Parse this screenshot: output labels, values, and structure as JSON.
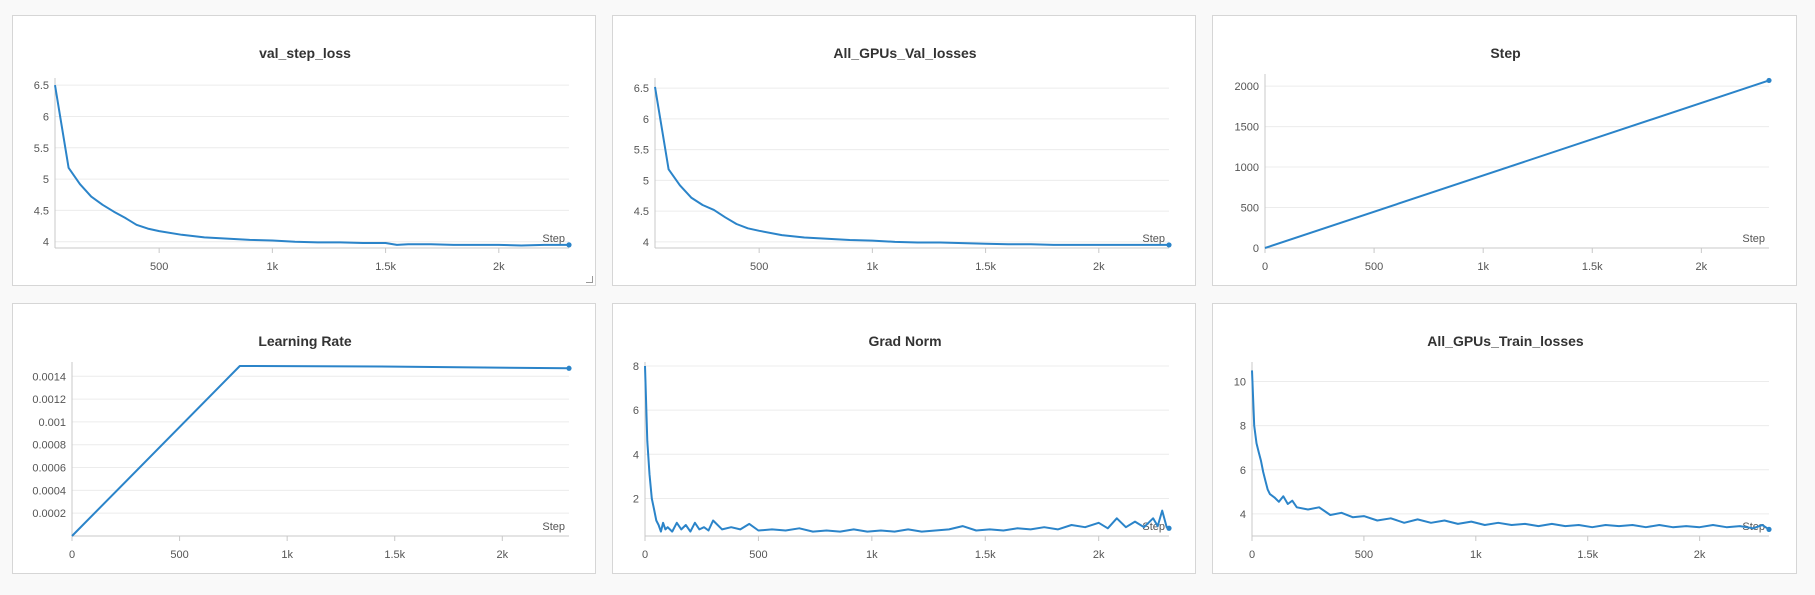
{
  "colors": {
    "line": "#2b84c9",
    "grid": "#ececec"
  },
  "chart_data": [
    {
      "type": "line",
      "title": "val_step_loss",
      "xlabel": "Step",
      "xlim": [
        40,
        2310
      ],
      "ylim": [
        3.9,
        6.55
      ],
      "xticks": [
        500,
        1000,
        1500,
        2000
      ],
      "xtick_labels": [
        "500",
        "1k",
        "1.5k",
        "2k"
      ],
      "yticks": [
        4,
        4.5,
        5,
        5.5,
        6,
        6.5
      ],
      "ytick_labels": [
        "4",
        "4.5",
        "5",
        "5.5",
        "6",
        "6.5"
      ],
      "x": [
        40,
        100,
        150,
        200,
        250,
        300,
        350,
        400,
        450,
        500,
        600,
        700,
        800,
        900,
        1000,
        1100,
        1200,
        1300,
        1400,
        1500,
        1550,
        1600,
        1700,
        1800,
        1900,
        2000,
        2100,
        2200,
        2310
      ],
      "y": [
        6.5,
        5.18,
        4.92,
        4.72,
        4.59,
        4.48,
        4.38,
        4.27,
        4.21,
        4.17,
        4.11,
        4.07,
        4.05,
        4.03,
        4.02,
        4.0,
        3.99,
        3.99,
        3.98,
        3.98,
        3.95,
        3.96,
        3.96,
        3.95,
        3.95,
        3.95,
        3.94,
        3.95,
        3.95
      ]
    },
    {
      "type": "line",
      "title": "All_GPUs_Val_losses",
      "xlabel": "Step",
      "xlim": [
        40,
        2310
      ],
      "ylim": [
        3.9,
        6.6
      ],
      "xticks": [
        500,
        1000,
        1500,
        2000
      ],
      "xtick_labels": [
        "500",
        "1k",
        "1.5k",
        "2k"
      ],
      "yticks": [
        4,
        4.5,
        5,
        5.5,
        6,
        6.5
      ],
      "ytick_labels": [
        "4",
        "4.5",
        "5",
        "5.5",
        "6",
        "6.5"
      ],
      "x": [
        40,
        100,
        150,
        200,
        250,
        300,
        350,
        400,
        450,
        500,
        600,
        700,
        800,
        900,
        1000,
        1100,
        1200,
        1300,
        1400,
        1500,
        1600,
        1700,
        1800,
        1900,
        2000,
        2100,
        2200,
        2310
      ],
      "y": [
        6.52,
        5.18,
        4.92,
        4.72,
        4.6,
        4.52,
        4.4,
        4.29,
        4.22,
        4.18,
        4.11,
        4.07,
        4.05,
        4.03,
        4.02,
        4.0,
        3.99,
        3.99,
        3.98,
        3.97,
        3.96,
        3.96,
        3.95,
        3.95,
        3.95,
        3.95,
        3.95,
        3.95
      ]
    },
    {
      "type": "line",
      "title": "Step",
      "xlabel": "Step",
      "xlim": [
        0,
        2310
      ],
      "ylim": [
        0,
        2100
      ],
      "xticks": [
        0,
        500,
        1000,
        1500,
        2000
      ],
      "xtick_labels": [
        "0",
        "500",
        "1k",
        "1.5k",
        "2k"
      ],
      "yticks": [
        0,
        500,
        1000,
        1500,
        2000
      ],
      "ytick_labels": [
        "0",
        "500",
        "1000",
        "1500",
        "2000"
      ],
      "x": [
        0,
        2310
      ],
      "y": [
        0,
        2070
      ]
    },
    {
      "type": "line",
      "title": "Learning Rate",
      "xlabel": "Step",
      "xlim": [
        0,
        2310
      ],
      "ylim": [
        0,
        0.00149
      ],
      "xticks": [
        0,
        500,
        1000,
        1500,
        2000
      ],
      "xtick_labels": [
        "0",
        "500",
        "1k",
        "1.5k",
        "2k"
      ],
      "yticks": [
        0.0002,
        0.0004,
        0.0006,
        0.0008,
        0.001,
        0.0012,
        0.0014
      ],
      "ytick_labels": [
        "0.0002",
        "0.0004",
        "0.0006",
        "0.0008",
        "0.001",
        "0.0012",
        "0.0014"
      ],
      "x": [
        0,
        780,
        1500,
        2310
      ],
      "y": [
        0,
        0.00149,
        0.001485,
        0.00147
      ]
    },
    {
      "type": "line",
      "title": "Grad Norm",
      "xlabel": "Step",
      "xlim": [
        0,
        2310
      ],
      "ylim": [
        0.3,
        8
      ],
      "xticks": [
        0,
        500,
        1000,
        1500,
        2000
      ],
      "xtick_labels": [
        "0",
        "500",
        "1k",
        "1.5k",
        "2k"
      ],
      "yticks": [
        2,
        4,
        6,
        8
      ],
      "ytick_labels": [
        "2",
        "4",
        "6",
        "8"
      ],
      "x": [
        0,
        10,
        20,
        30,
        40,
        50,
        60,
        70,
        80,
        90,
        100,
        120,
        140,
        160,
        180,
        200,
        220,
        240,
        260,
        280,
        300,
        340,
        380,
        420,
        460,
        500,
        560,
        620,
        680,
        740,
        800,
        860,
        920,
        980,
        1040,
        1100,
        1160,
        1220,
        1280,
        1340,
        1400,
        1460,
        1520,
        1580,
        1640,
        1700,
        1760,
        1820,
        1880,
        1940,
        2000,
        2040,
        2080,
        2120,
        2160,
        2200,
        2240,
        2260,
        2280,
        2300,
        2310
      ],
      "y": [
        8,
        4.6,
        3.1,
        2.0,
        1.5,
        1.0,
        0.8,
        0.5,
        0.9,
        0.6,
        0.7,
        0.5,
        0.9,
        0.6,
        0.8,
        0.5,
        0.9,
        0.6,
        0.7,
        0.55,
        1.0,
        0.6,
        0.7,
        0.6,
        0.85,
        0.55,
        0.6,
        0.55,
        0.65,
        0.5,
        0.55,
        0.5,
        0.6,
        0.5,
        0.55,
        0.5,
        0.6,
        0.5,
        0.55,
        0.6,
        0.75,
        0.55,
        0.6,
        0.55,
        0.65,
        0.6,
        0.7,
        0.6,
        0.8,
        0.7,
        0.9,
        0.65,
        1.1,
        0.7,
        0.95,
        0.7,
        1.1,
        0.75,
        1.45,
        0.7,
        0.65
      ]
    },
    {
      "type": "line",
      "title": "All_GPUs_Train_losses",
      "xlabel": "Step",
      "xlim": [
        0,
        2310
      ],
      "ylim": [
        3.0,
        10.7
      ],
      "xticks": [
        0,
        500,
        1000,
        1500,
        2000
      ],
      "xtick_labels": [
        "0",
        "500",
        "1k",
        "1.5k",
        "2k"
      ],
      "yticks": [
        4,
        6,
        8,
        10
      ],
      "ytick_labels": [
        "4",
        "6",
        "8",
        "10"
      ],
      "x": [
        0,
        10,
        20,
        30,
        40,
        50,
        60,
        70,
        80,
        100,
        120,
        140,
        160,
        180,
        200,
        250,
        300,
        350,
        400,
        450,
        500,
        560,
        620,
        680,
        740,
        800,
        860,
        920,
        980,
        1040,
        1100,
        1160,
        1220,
        1280,
        1340,
        1400,
        1460,
        1520,
        1580,
        1640,
        1700,
        1760,
        1820,
        1880,
        1940,
        2000,
        2060,
        2120,
        2180,
        2240,
        2280,
        2310
      ],
      "y": [
        10.5,
        8.0,
        7.2,
        6.8,
        6.4,
        5.9,
        5.5,
        5.1,
        4.9,
        4.75,
        4.55,
        4.8,
        4.45,
        4.6,
        4.3,
        4.2,
        4.3,
        3.95,
        4.05,
        3.85,
        3.9,
        3.7,
        3.8,
        3.6,
        3.75,
        3.6,
        3.7,
        3.55,
        3.65,
        3.5,
        3.6,
        3.5,
        3.55,
        3.45,
        3.55,
        3.45,
        3.5,
        3.4,
        3.5,
        3.45,
        3.5,
        3.4,
        3.5,
        3.4,
        3.45,
        3.4,
        3.5,
        3.4,
        3.45,
        3.35,
        3.5,
        3.3
      ]
    }
  ]
}
